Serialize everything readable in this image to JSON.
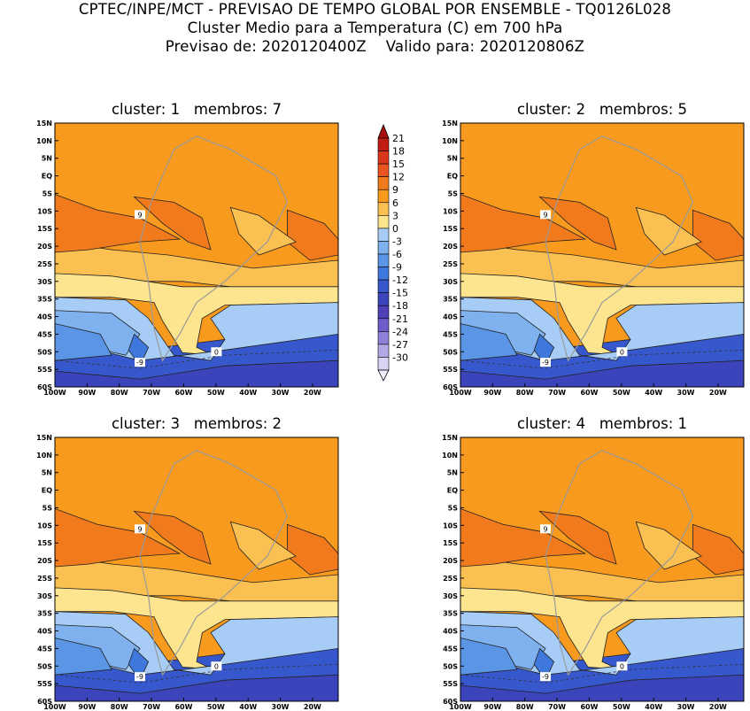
{
  "header": {
    "line1": "CPTEC/INPE/MCT - PREVISAO DE TEMPO GLOBAL POR ENSEMBLE - TQ0126L028",
    "line2": "Cluster Medio para a Temperatura (C) em 700 hPa",
    "line3": "Previsao de: 2020120400Z    Valido para: 2020120806Z"
  },
  "panels": [
    {
      "title": "cluster: 1   membros: 7"
    },
    {
      "title": "cluster: 2   membros: 5"
    },
    {
      "title": "cluster: 3   membros: 2"
    },
    {
      "title": "cluster: 4   membros: 1"
    }
  ],
  "axes": {
    "lat_labels": [
      "15N",
      "10N",
      "5N",
      "EQ",
      "5S",
      "10S",
      "15S",
      "20S",
      "25S",
      "30S",
      "35S",
      "40S",
      "45S",
      "50S",
      "55S",
      "60S"
    ],
    "lon_labels": [
      "100W",
      "90W",
      "80W",
      "70W",
      "60W",
      "50W",
      "40W",
      "30W",
      "20W"
    ],
    "lon_range": [
      -100,
      -12
    ],
    "lat_range": [
      -60,
      15
    ]
  },
  "colorbar": {
    "labels": [
      "21",
      "18",
      "15",
      "12",
      "9",
      "6",
      "3",
      "0",
      "-3",
      "-6",
      "-9",
      "-12",
      "-15",
      "-18",
      "-21",
      "-24",
      "-27",
      "-30"
    ],
    "colors": [
      "#c01c14",
      "#d9381c",
      "#ea5420",
      "#f07a1c",
      "#f79a1e",
      "#fbc052",
      "#fde48e",
      "#a7ccf6",
      "#7fb1ee",
      "#5a95e6",
      "#3f78dc",
      "#3658cc",
      "#3c44bc",
      "#5040b8",
      "#6e5cc8",
      "#8e80d8",
      "#b2a8e6",
      "#d8d4f4"
    ],
    "contour_labels": [
      "9",
      "0",
      "-9"
    ]
  }
}
